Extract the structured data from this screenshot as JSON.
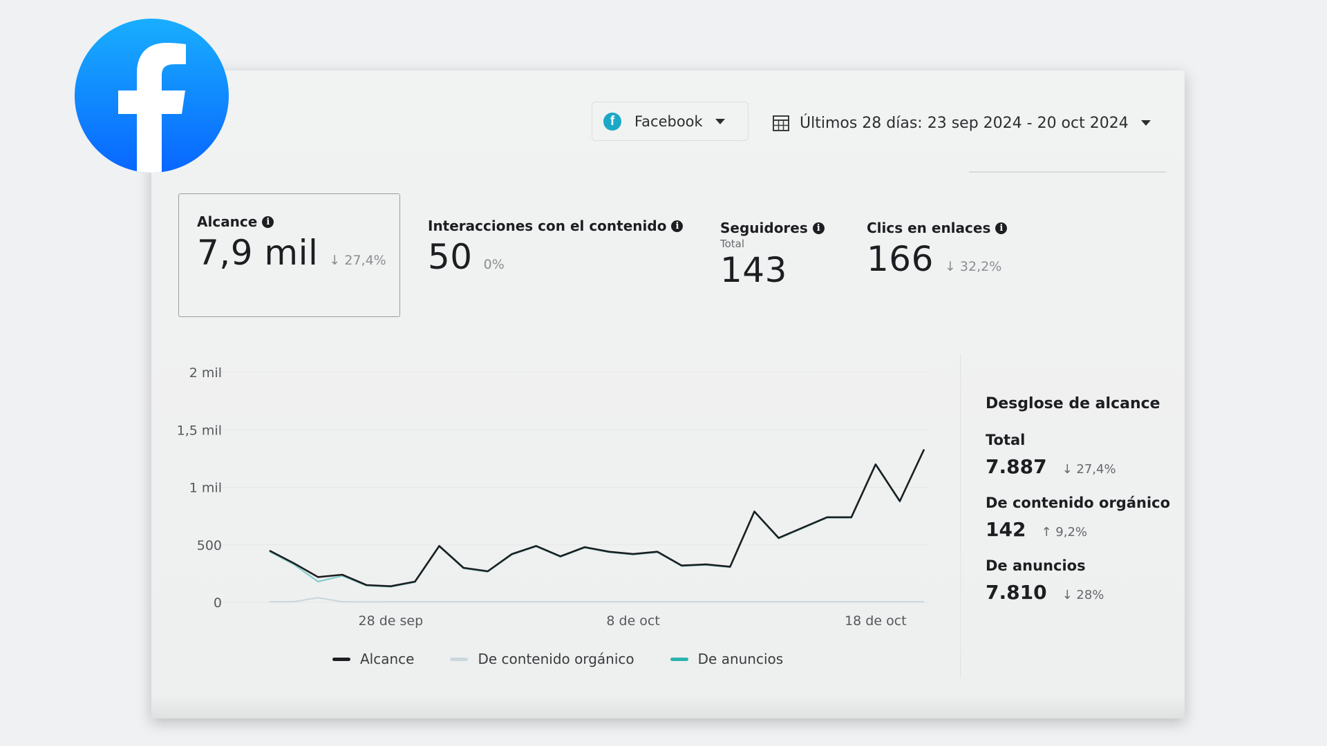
{
  "brand": {
    "facebook_blue_top": "#19aefe",
    "facebook_blue_bottom": "#0866ff",
    "accent_teal": "#1aa8c7"
  },
  "platform_selector": {
    "label": "Facebook",
    "icon": "facebook-icon"
  },
  "date_selector": {
    "label": "Últimos 28 días: 23 sep 2024 - 20 oct 2024",
    "icon": "calendar-icon"
  },
  "metrics": [
    {
      "label": "Alcance",
      "value": "7,9 mil",
      "delta": "27,4%",
      "delta_dir": "↓",
      "selected": true
    },
    {
      "label": "Interacciones con el contenido",
      "value": "50",
      "delta": "0%",
      "delta_dir": ""
    },
    {
      "label": "Seguidores",
      "sub": "Total",
      "value": "143"
    },
    {
      "label": "Clics en enlaces",
      "value": "166",
      "delta": "32,2%",
      "delta_dir": "↓"
    }
  ],
  "chart_data": {
    "type": "line",
    "x": [
      "2024-09-23",
      "2024-09-24",
      "2024-09-25",
      "2024-09-26",
      "2024-09-27",
      "2024-09-28",
      "2024-09-29",
      "2024-09-30",
      "2024-10-01",
      "2024-10-02",
      "2024-10-03",
      "2024-10-04",
      "2024-10-05",
      "2024-10-06",
      "2024-10-07",
      "2024-10-08",
      "2024-10-09",
      "2024-10-10",
      "2024-10-11",
      "2024-10-12",
      "2024-10-13",
      "2024-10-14",
      "2024-10-15",
      "2024-10-16",
      "2024-10-17",
      "2024-10-18",
      "2024-10-19",
      "2024-10-20"
    ],
    "x_ticks": [
      {
        "x": "2024-09-28",
        "label": "28 de sep"
      },
      {
        "x": "2024-10-08",
        "label": "8 de oct"
      },
      {
        "x": "2024-10-18",
        "label": "18 de oct"
      }
    ],
    "y_ticks": [
      {
        "value": 0,
        "label": "0"
      },
      {
        "value": 500,
        "label": "500"
      },
      {
        "value": 1000,
        "label": "1 mil"
      },
      {
        "value": 1500,
        "label": "1,5 mil"
      },
      {
        "value": 2000,
        "label": "2 mil"
      }
    ],
    "ylim": [
      0,
      2000
    ],
    "grid": true,
    "legend_position": "bottom",
    "series": [
      {
        "name": "Alcance",
        "color": "#1c1e21",
        "values": [
          450,
          340,
          220,
          240,
          150,
          140,
          180,
          490,
          300,
          270,
          420,
          490,
          400,
          480,
          440,
          420,
          440,
          320,
          330,
          310,
          790,
          560,
          650,
          740,
          740,
          1200,
          880,
          1330
        ]
      },
      {
        "name": "De contenido orgánico",
        "color": "#c9d8dc",
        "values": [
          5,
          5,
          40,
          5,
          4,
          5,
          5,
          5,
          5,
          5,
          5,
          5,
          5,
          5,
          5,
          5,
          5,
          5,
          5,
          5,
          5,
          5,
          5,
          5,
          5,
          5,
          5,
          5
        ]
      },
      {
        "name": "De anuncios",
        "color": "#2bb3ad",
        "values": [
          440,
          330,
          180,
          230,
          145,
          135,
          175,
          485,
          295,
          265,
          415,
          485,
          395,
          475,
          435,
          415,
          435,
          315,
          325,
          305,
          785,
          555,
          645,
          735,
          735,
          1195,
          875,
          1325
        ]
      }
    ]
  },
  "breakdown": {
    "title": "Desglose de alcance",
    "items": [
      {
        "label": "Total",
        "value": "7.887",
        "delta": "27,4%",
        "delta_dir": "↓"
      },
      {
        "label": "De contenido orgánico",
        "value": "142",
        "delta": "9,2%",
        "delta_dir": "↑"
      },
      {
        "label": "De anuncios",
        "value": "7.810",
        "delta": "28%",
        "delta_dir": "↓"
      }
    ]
  }
}
